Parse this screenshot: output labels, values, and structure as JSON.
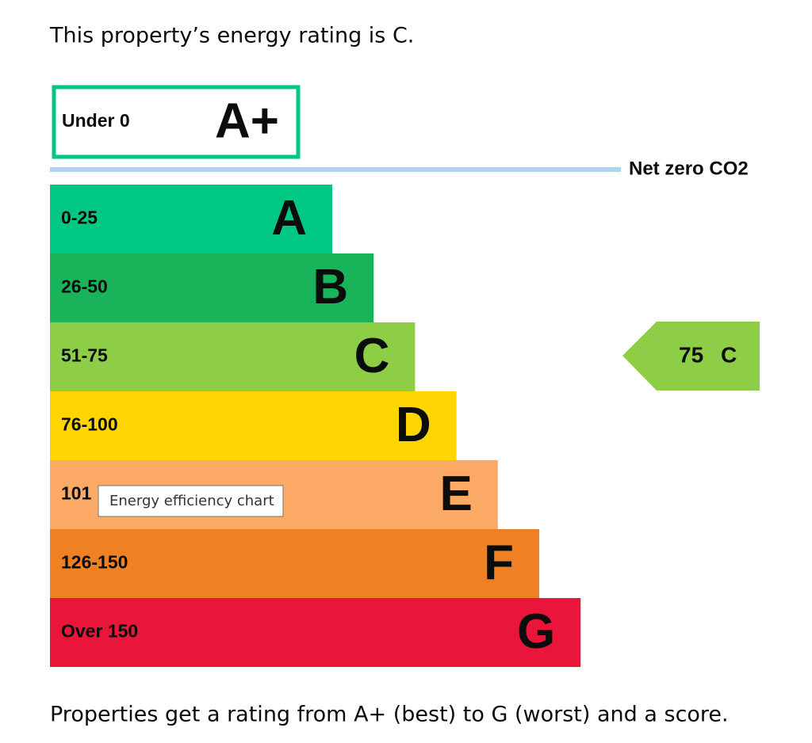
{
  "intro": "This property’s energy rating is C.",
  "top_band": {
    "range": "Under 0",
    "letter": "A+",
    "color": "#00c781"
  },
  "net_zero": "Net zero CO2",
  "bands": [
    {
      "range": "0-25",
      "letter": "A",
      "color": "#00c781"
    },
    {
      "range": "26-50",
      "letter": "B",
      "color": "#19b459"
    },
    {
      "range": "51-75",
      "letter": "C",
      "color": "#8dce46"
    },
    {
      "range": "76-100",
      "letter": "D",
      "color": "#ffd500"
    },
    {
      "range": "101",
      "letter": "E",
      "color": "#fcaa65"
    },
    {
      "range": "126-150",
      "letter": "F",
      "color": "#ef8023"
    },
    {
      "range": "Over 150",
      "letter": "G",
      "color": "#e9153b"
    }
  ],
  "current": {
    "score": "75",
    "rating": "C",
    "color": "#8dce46"
  },
  "tooltip": "Energy efficiency chart",
  "footer": "Properties get a rating from A+ (best) to G (worst) and a score."
}
